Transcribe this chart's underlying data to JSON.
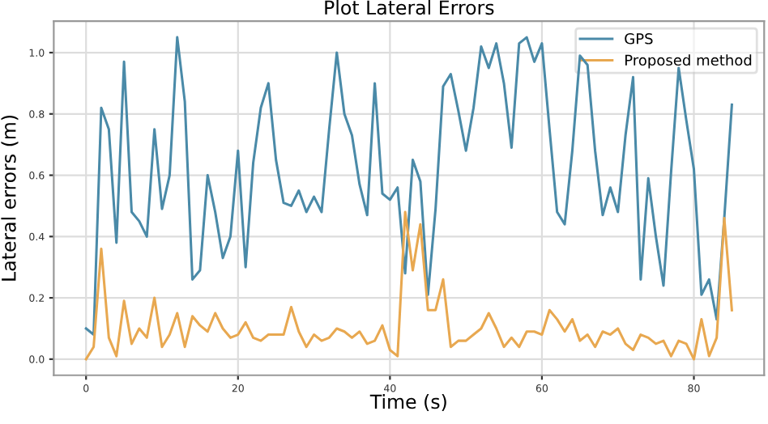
{
  "chart_data": {
    "type": "line",
    "title": "Plot Lateral Errors",
    "xlabel": "Time (s)",
    "ylabel": "Lateral errors (m)",
    "x": [
      0,
      1,
      2,
      3,
      4,
      5,
      6,
      7,
      8,
      9,
      10,
      11,
      12,
      13,
      14,
      15,
      16,
      17,
      18,
      19,
      20,
      21,
      22,
      23,
      24,
      25,
      26,
      27,
      28,
      29,
      30,
      31,
      32,
      33,
      34,
      35,
      36,
      37,
      38,
      39,
      40,
      41,
      42,
      43,
      44,
      45,
      46,
      47,
      48,
      49,
      50,
      51,
      52,
      53,
      54,
      55,
      56,
      57,
      58,
      59,
      60,
      61,
      62,
      63,
      64,
      65,
      66,
      67,
      68,
      69,
      70,
      71,
      72,
      73,
      74,
      75,
      76,
      77,
      78,
      79,
      80,
      81,
      82,
      83,
      84,
      85
    ],
    "series": [
      {
        "name": "GPS",
        "color": "#4a8aa8",
        "values": [
          0.1,
          0.08,
          0.82,
          0.75,
          0.38,
          0.97,
          0.48,
          0.45,
          0.4,
          0.75,
          0.49,
          0.6,
          1.05,
          0.84,
          0.26,
          0.29,
          0.6,
          0.48,
          0.33,
          0.4,
          0.68,
          0.3,
          0.64,
          0.82,
          0.9,
          0.65,
          0.51,
          0.5,
          0.55,
          0.48,
          0.53,
          0.48,
          0.75,
          1.0,
          0.8,
          0.73,
          0.57,
          0.47,
          0.9,
          0.54,
          0.52,
          0.56,
          0.28,
          0.65,
          0.58,
          0.21,
          0.49,
          0.89,
          0.93,
          0.81,
          0.68,
          0.82,
          1.02,
          0.95,
          1.03,
          0.9,
          0.69,
          1.03,
          1.05,
          0.97,
          1.03,
          0.75,
          0.48,
          0.44,
          0.68,
          0.99,
          0.96,
          0.68,
          0.47,
          0.56,
          0.48,
          0.73,
          0.92,
          0.26,
          0.59,
          0.4,
          0.24,
          0.61,
          0.95,
          0.78,
          0.62,
          0.21,
          0.26,
          0.13,
          0.46,
          0.83
        ]
      },
      {
        "name": "Proposed method",
        "color": "#e8a850",
        "values": [
          0.0,
          0.04,
          0.36,
          0.07,
          0.01,
          0.19,
          0.05,
          0.1,
          0.07,
          0.2,
          0.04,
          0.08,
          0.15,
          0.04,
          0.14,
          0.11,
          0.09,
          0.15,
          0.1,
          0.07,
          0.08,
          0.12,
          0.07,
          0.06,
          0.08,
          0.08,
          0.08,
          0.17,
          0.09,
          0.04,
          0.08,
          0.06,
          0.07,
          0.1,
          0.09,
          0.07,
          0.09,
          0.05,
          0.06,
          0.11,
          0.03,
          0.01,
          0.48,
          0.29,
          0.44,
          0.16,
          0.16,
          0.26,
          0.04,
          0.06,
          0.06,
          0.08,
          0.1,
          0.15,
          0.1,
          0.04,
          0.07,
          0.04,
          0.09,
          0.09,
          0.08,
          0.16,
          0.13,
          0.09,
          0.13,
          0.06,
          0.08,
          0.04,
          0.09,
          0.08,
          0.1,
          0.05,
          0.03,
          0.08,
          0.07,
          0.05,
          0.06,
          0.01,
          0.06,
          0.05,
          0.0,
          0.13,
          0.01,
          0.07,
          0.46,
          0.16
        ]
      }
    ],
    "xlim": [
      -4.25,
      89.25
    ],
    "ylim": [
      -0.0525,
      1.1025
    ],
    "xticks": [
      0,
      20,
      40,
      60,
      80
    ],
    "yticks": [
      {
        "value": 0,
        "label": "0.0"
      },
      {
        "value": 0.2,
        "label": "0.2"
      },
      {
        "value": 0.4,
        "label": "0.4"
      },
      {
        "value": 0.6,
        "label": "0.6"
      },
      {
        "value": 0.8,
        "label": "0.8"
      },
      {
        "value": 1.0,
        "label": "1.0"
      }
    ],
    "grid": true,
    "legend": "top right",
    "marker": "none",
    "line_style": "solid"
  }
}
